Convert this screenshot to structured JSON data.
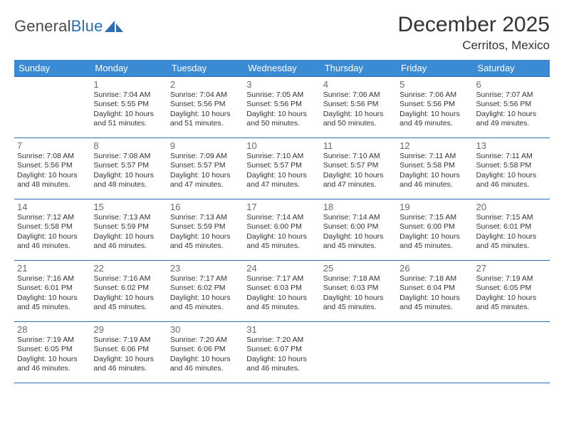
{
  "brand": {
    "name_gray": "General",
    "name_blue": "Blue"
  },
  "title": "December 2025",
  "location": "Cerritos, Mexico",
  "colors": {
    "header_bg": "#3b8bd4",
    "header_text": "#ffffff",
    "border": "#2a6fb5",
    "text": "#333333",
    "muted": "#6a6a6a",
    "background": "#ffffff"
  },
  "weekdays": [
    "Sunday",
    "Monday",
    "Tuesday",
    "Wednesday",
    "Thursday",
    "Friday",
    "Saturday"
  ],
  "cells": [
    {
      "day": "",
      "sunrise": "",
      "sunset": "",
      "daylight": ""
    },
    {
      "day": "1",
      "sunrise": "Sunrise: 7:04 AM",
      "sunset": "Sunset: 5:55 PM",
      "daylight": "Daylight: 10 hours and 51 minutes."
    },
    {
      "day": "2",
      "sunrise": "Sunrise: 7:04 AM",
      "sunset": "Sunset: 5:56 PM",
      "daylight": "Daylight: 10 hours and 51 minutes."
    },
    {
      "day": "3",
      "sunrise": "Sunrise: 7:05 AM",
      "sunset": "Sunset: 5:56 PM",
      "daylight": "Daylight: 10 hours and 50 minutes."
    },
    {
      "day": "4",
      "sunrise": "Sunrise: 7:06 AM",
      "sunset": "Sunset: 5:56 PM",
      "daylight": "Daylight: 10 hours and 50 minutes."
    },
    {
      "day": "5",
      "sunrise": "Sunrise: 7:06 AM",
      "sunset": "Sunset: 5:56 PM",
      "daylight": "Daylight: 10 hours and 49 minutes."
    },
    {
      "day": "6",
      "sunrise": "Sunrise: 7:07 AM",
      "sunset": "Sunset: 5:56 PM",
      "daylight": "Daylight: 10 hours and 49 minutes."
    },
    {
      "day": "7",
      "sunrise": "Sunrise: 7:08 AM",
      "sunset": "Sunset: 5:56 PM",
      "daylight": "Daylight: 10 hours and 48 minutes."
    },
    {
      "day": "8",
      "sunrise": "Sunrise: 7:08 AM",
      "sunset": "Sunset: 5:57 PM",
      "daylight": "Daylight: 10 hours and 48 minutes."
    },
    {
      "day": "9",
      "sunrise": "Sunrise: 7:09 AM",
      "sunset": "Sunset: 5:57 PM",
      "daylight": "Daylight: 10 hours and 47 minutes."
    },
    {
      "day": "10",
      "sunrise": "Sunrise: 7:10 AM",
      "sunset": "Sunset: 5:57 PM",
      "daylight": "Daylight: 10 hours and 47 minutes."
    },
    {
      "day": "11",
      "sunrise": "Sunrise: 7:10 AM",
      "sunset": "Sunset: 5:57 PM",
      "daylight": "Daylight: 10 hours and 47 minutes."
    },
    {
      "day": "12",
      "sunrise": "Sunrise: 7:11 AM",
      "sunset": "Sunset: 5:58 PM",
      "daylight": "Daylight: 10 hours and 46 minutes."
    },
    {
      "day": "13",
      "sunrise": "Sunrise: 7:11 AM",
      "sunset": "Sunset: 5:58 PM",
      "daylight": "Daylight: 10 hours and 46 minutes."
    },
    {
      "day": "14",
      "sunrise": "Sunrise: 7:12 AM",
      "sunset": "Sunset: 5:58 PM",
      "daylight": "Daylight: 10 hours and 46 minutes."
    },
    {
      "day": "15",
      "sunrise": "Sunrise: 7:13 AM",
      "sunset": "Sunset: 5:59 PM",
      "daylight": "Daylight: 10 hours and 46 minutes."
    },
    {
      "day": "16",
      "sunrise": "Sunrise: 7:13 AM",
      "sunset": "Sunset: 5:59 PM",
      "daylight": "Daylight: 10 hours and 45 minutes."
    },
    {
      "day": "17",
      "sunrise": "Sunrise: 7:14 AM",
      "sunset": "Sunset: 6:00 PM",
      "daylight": "Daylight: 10 hours and 45 minutes."
    },
    {
      "day": "18",
      "sunrise": "Sunrise: 7:14 AM",
      "sunset": "Sunset: 6:00 PM",
      "daylight": "Daylight: 10 hours and 45 minutes."
    },
    {
      "day": "19",
      "sunrise": "Sunrise: 7:15 AM",
      "sunset": "Sunset: 6:00 PM",
      "daylight": "Daylight: 10 hours and 45 minutes."
    },
    {
      "day": "20",
      "sunrise": "Sunrise: 7:15 AM",
      "sunset": "Sunset: 6:01 PM",
      "daylight": "Daylight: 10 hours and 45 minutes."
    },
    {
      "day": "21",
      "sunrise": "Sunrise: 7:16 AM",
      "sunset": "Sunset: 6:01 PM",
      "daylight": "Daylight: 10 hours and 45 minutes."
    },
    {
      "day": "22",
      "sunrise": "Sunrise: 7:16 AM",
      "sunset": "Sunset: 6:02 PM",
      "daylight": "Daylight: 10 hours and 45 minutes."
    },
    {
      "day": "23",
      "sunrise": "Sunrise: 7:17 AM",
      "sunset": "Sunset: 6:02 PM",
      "daylight": "Daylight: 10 hours and 45 minutes."
    },
    {
      "day": "24",
      "sunrise": "Sunrise: 7:17 AM",
      "sunset": "Sunset: 6:03 PM",
      "daylight": "Daylight: 10 hours and 45 minutes."
    },
    {
      "day": "25",
      "sunrise": "Sunrise: 7:18 AM",
      "sunset": "Sunset: 6:03 PM",
      "daylight": "Daylight: 10 hours and 45 minutes."
    },
    {
      "day": "26",
      "sunrise": "Sunrise: 7:18 AM",
      "sunset": "Sunset: 6:04 PM",
      "daylight": "Daylight: 10 hours and 45 minutes."
    },
    {
      "day": "27",
      "sunrise": "Sunrise: 7:19 AM",
      "sunset": "Sunset: 6:05 PM",
      "daylight": "Daylight: 10 hours and 45 minutes."
    },
    {
      "day": "28",
      "sunrise": "Sunrise: 7:19 AM",
      "sunset": "Sunset: 6:05 PM",
      "daylight": "Daylight: 10 hours and 46 minutes."
    },
    {
      "day": "29",
      "sunrise": "Sunrise: 7:19 AM",
      "sunset": "Sunset: 6:06 PM",
      "daylight": "Daylight: 10 hours and 46 minutes."
    },
    {
      "day": "30",
      "sunrise": "Sunrise: 7:20 AM",
      "sunset": "Sunset: 6:06 PM",
      "daylight": "Daylight: 10 hours and 46 minutes."
    },
    {
      "day": "31",
      "sunrise": "Sunrise: 7:20 AM",
      "sunset": "Sunset: 6:07 PM",
      "daylight": "Daylight: 10 hours and 46 minutes."
    },
    {
      "day": "",
      "sunrise": "",
      "sunset": "",
      "daylight": ""
    },
    {
      "day": "",
      "sunrise": "",
      "sunset": "",
      "daylight": ""
    },
    {
      "day": "",
      "sunrise": "",
      "sunset": "",
      "daylight": ""
    }
  ]
}
